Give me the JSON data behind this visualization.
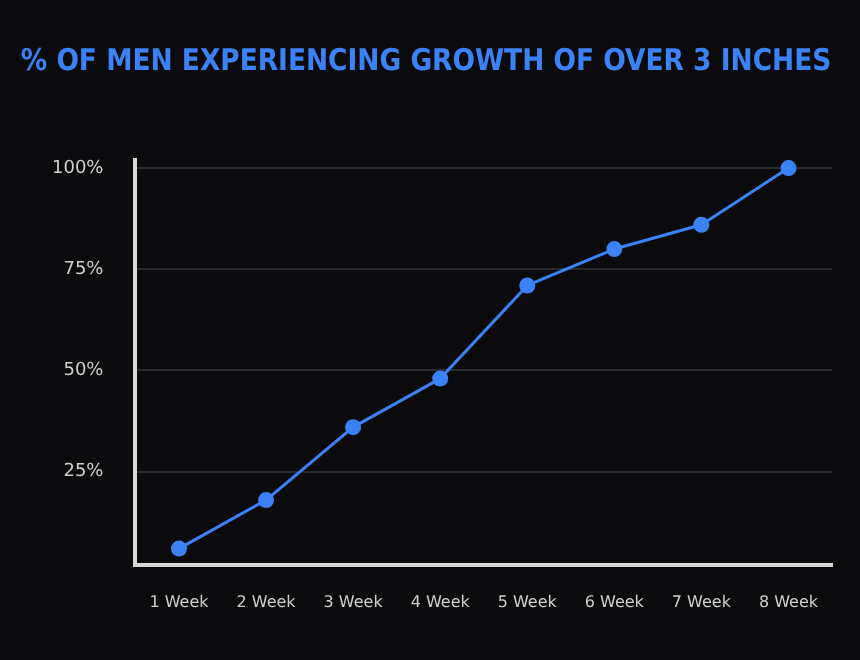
{
  "chart_data": {
    "type": "line",
    "title": "% OF MEN EXPERIENCING GROWTH OF OVER 3 INCHES",
    "categories": [
      "1 Week",
      "2 Week",
      "3 Week",
      "4 Week",
      "5 Week",
      "6 Week",
      "7 Week",
      "8 Week"
    ],
    "series": [
      {
        "color": "#3b82f6",
        "values": [
          6,
          18,
          36,
          48,
          71,
          80,
          86,
          100
        ]
      }
    ],
    "ylim": [
      2,
      102
    ],
    "yticks": [
      {
        "value": 25,
        "label": "25%"
      },
      {
        "value": 50,
        "label": "50%"
      },
      {
        "value": 75,
        "label": "75%"
      },
      {
        "value": 100,
        "label": "100%"
      }
    ],
    "grid": "y",
    "legend": false,
    "marker": "circle",
    "line_style": "solid"
  }
}
